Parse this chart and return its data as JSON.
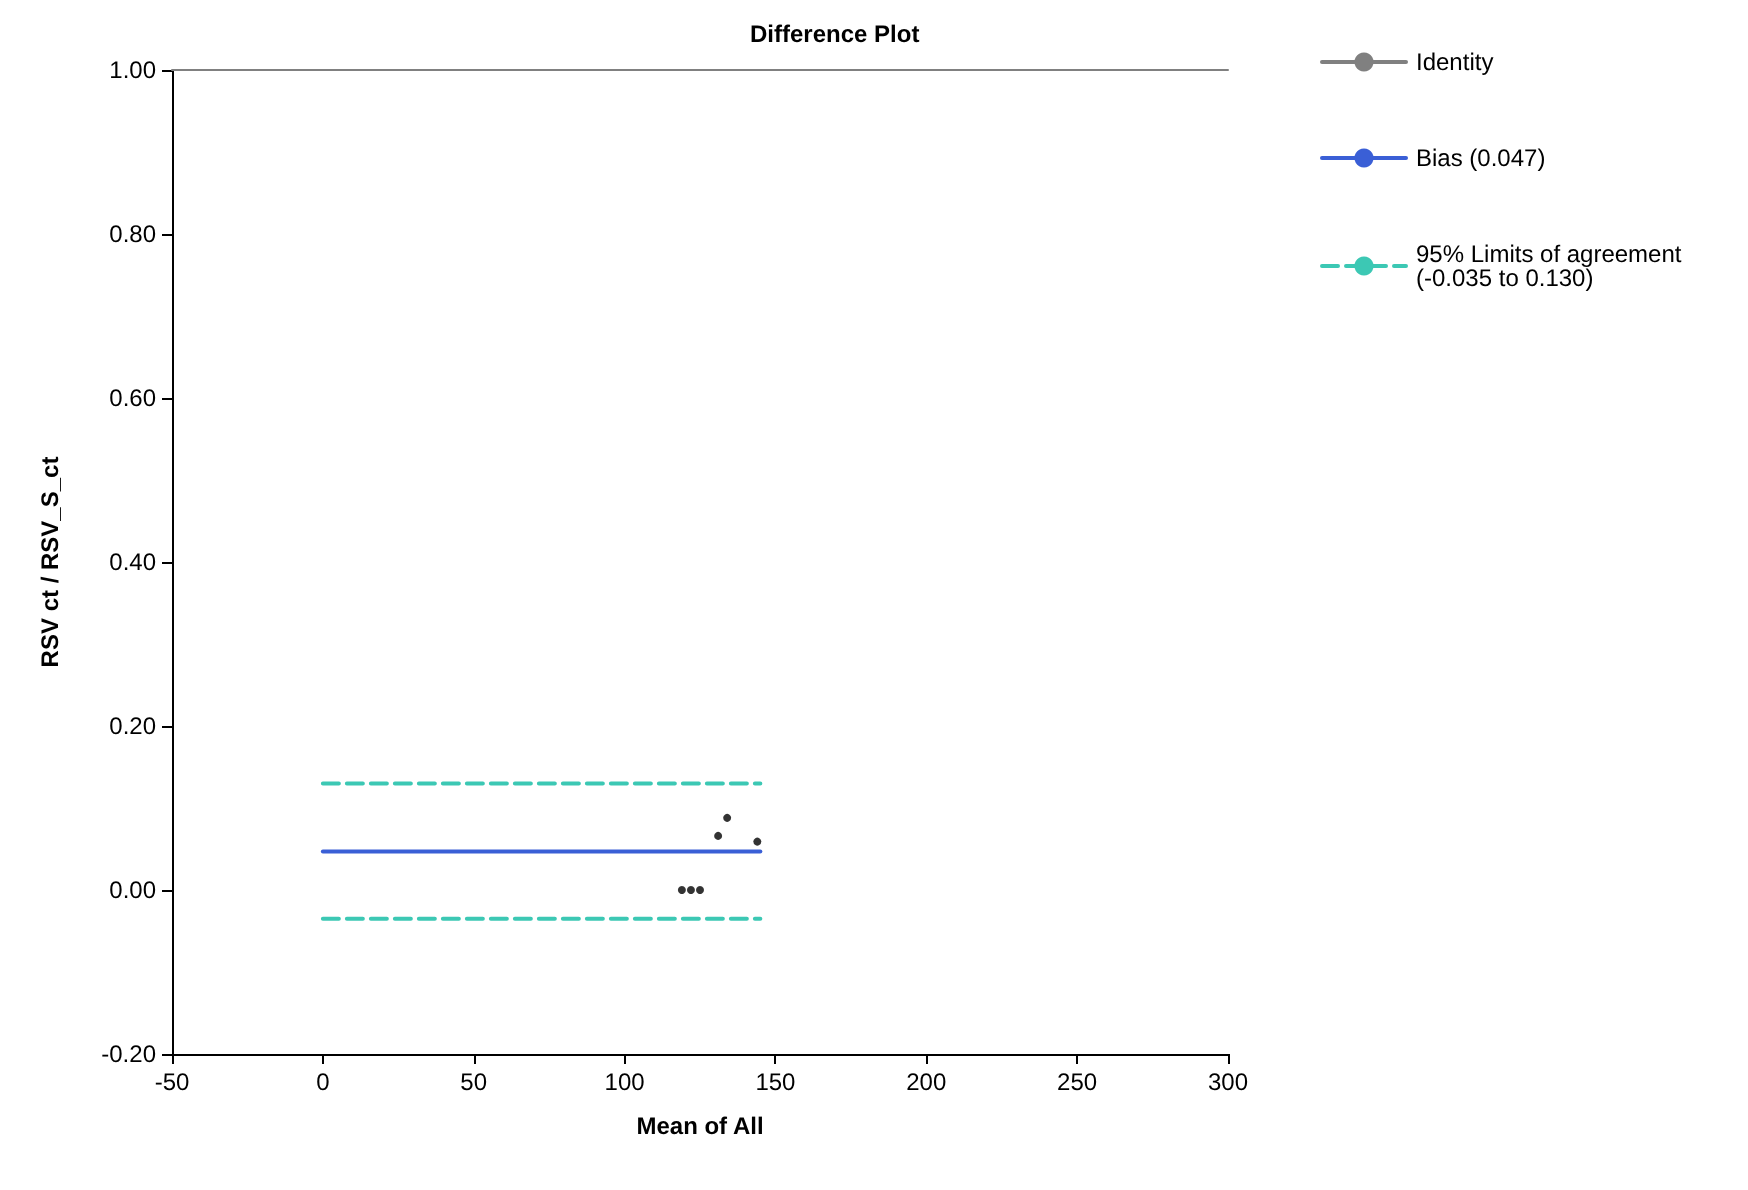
{
  "chart_data": {
    "type": "scatter",
    "title": "Difference Plot",
    "xlabel": "Mean of All",
    "ylabel": "RSV ct / RSV_S_ct",
    "xlim": [
      -50,
      300
    ],
    "xticks": [
      -50,
      0,
      50,
      100,
      150,
      200,
      250,
      300
    ],
    "ylim": [
      -0.2,
      1.0
    ],
    "yticks": [
      {
        "value": -0.2,
        "label": "-0.20"
      },
      {
        "value": 0,
        "label": "0.00"
      },
      {
        "value": 0.2,
        "label": "0.20"
      },
      {
        "value": 0.4,
        "label": "0.40"
      },
      {
        "value": 0.6,
        "label": "0.60"
      },
      {
        "value": 0.8,
        "label": "0.80"
      },
      {
        "value": 1.0,
        "label": "1.00"
      }
    ],
    "grid": false,
    "legend": "right",
    "marker": "circle",
    "series": [
      {
        "color": "#000000",
        "x": [
          119,
          122,
          125,
          131,
          134,
          144
        ],
        "values": [
          0,
          0,
          0,
          0.066,
          0.088,
          0.059
        ]
      },
      {
        "type": "line",
        "name": "Identity",
        "color": "#808080",
        "line_style": "solid",
        "marker": "none",
        "x": [
          -50,
          300
        ],
        "values": [
          1,
          1
        ]
      },
      {
        "type": "line",
        "name": "Bias (0.047)",
        "color": "#3a5fd6",
        "line_style": "solid",
        "marker": "none",
        "x": [
          0,
          145
        ],
        "values": [
          0.047,
          0.047
        ]
      },
      {
        "type": "line",
        "name": "95% Limits of agreement\n(-0.035 to 0.130)",
        "color": "#3cc8b4",
        "line_style": "dashed",
        "marker": "none",
        "x": [
          0,
          145
        ],
        "values": [
          0.13,
          0.13
        ]
      },
      {
        "type": "line",
        "color": "#3cc8b4",
        "line_style": "dashed",
        "marker": "none",
        "x": [
          0,
          145
        ],
        "values": [
          -0.035,
          -0.035
        ]
      }
    ]
  }
}
